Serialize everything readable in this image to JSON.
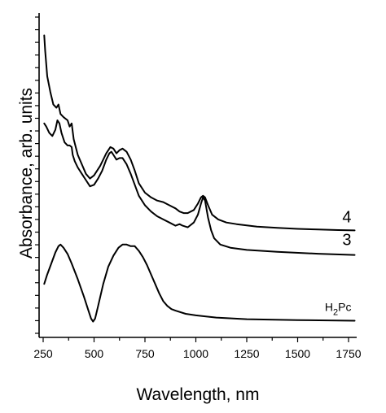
{
  "chart_data": {
    "type": "line",
    "xlabel": "Wavelength, nm",
    "ylabel": "Absorbance, arb. units",
    "xlim": [
      230,
      1790
    ],
    "ylim": [
      0,
      1
    ],
    "x_ticks": [
      250,
      500,
      750,
      1000,
      1250,
      1500,
      1750
    ],
    "x_tick_labels": [
      "250",
      "500",
      "750",
      "1000",
      "1250",
      "1500",
      "1750"
    ],
    "y_tick_labels_shown": false,
    "y_minor_ticks": 25,
    "series": [
      {
        "name": "4",
        "label_main": "4",
        "points": [
          [
            255,
            0.96
          ],
          [
            260,
            0.91
          ],
          [
            270,
            0.83
          ],
          [
            285,
            0.78
          ],
          [
            300,
            0.74
          ],
          [
            315,
            0.73
          ],
          [
            325,
            0.74
          ],
          [
            335,
            0.71
          ],
          [
            350,
            0.7
          ],
          [
            370,
            0.69
          ],
          [
            380,
            0.67
          ],
          [
            390,
            0.68
          ],
          [
            400,
            0.63
          ],
          [
            420,
            0.58
          ],
          [
            440,
            0.55
          ],
          [
            460,
            0.52
          ],
          [
            480,
            0.505
          ],
          [
            500,
            0.515
          ],
          [
            530,
            0.545
          ],
          [
            560,
            0.585
          ],
          [
            580,
            0.605
          ],
          [
            595,
            0.6
          ],
          [
            610,
            0.585
          ],
          [
            625,
            0.595
          ],
          [
            640,
            0.6
          ],
          [
            660,
            0.59
          ],
          [
            680,
            0.565
          ],
          [
            700,
            0.53
          ],
          [
            720,
            0.49
          ],
          [
            750,
            0.46
          ],
          [
            780,
            0.445
          ],
          [
            810,
            0.435
          ],
          [
            840,
            0.43
          ],
          [
            870,
            0.42
          ],
          [
            900,
            0.41
          ],
          [
            920,
            0.4
          ],
          [
            940,
            0.395
          ],
          [
            960,
            0.395
          ],
          [
            990,
            0.405
          ],
          [
            1010,
            0.425
          ],
          [
            1025,
            0.445
          ],
          [
            1035,
            0.45
          ],
          [
            1045,
            0.445
          ],
          [
            1060,
            0.42
          ],
          [
            1080,
            0.39
          ],
          [
            1110,
            0.375
          ],
          [
            1150,
            0.365
          ],
          [
            1200,
            0.36
          ],
          [
            1300,
            0.352
          ],
          [
            1400,
            0.348
          ],
          [
            1500,
            0.345
          ],
          [
            1600,
            0.343
          ],
          [
            1700,
            0.341
          ],
          [
            1780,
            0.34
          ]
        ]
      },
      {
        "name": "3",
        "label_main": "3",
        "points": [
          [
            255,
            0.68
          ],
          [
            265,
            0.67
          ],
          [
            280,
            0.65
          ],
          [
            295,
            0.64
          ],
          [
            310,
            0.66
          ],
          [
            320,
            0.69
          ],
          [
            330,
            0.68
          ],
          [
            340,
            0.65
          ],
          [
            355,
            0.62
          ],
          [
            370,
            0.61
          ],
          [
            380,
            0.61
          ],
          [
            390,
            0.605
          ],
          [
            395,
            0.58
          ],
          [
            405,
            0.56
          ],
          [
            420,
            0.54
          ],
          [
            440,
            0.52
          ],
          [
            460,
            0.5
          ],
          [
            480,
            0.48
          ],
          [
            500,
            0.485
          ],
          [
            520,
            0.505
          ],
          [
            540,
            0.53
          ],
          [
            560,
            0.565
          ],
          [
            575,
            0.585
          ],
          [
            585,
            0.59
          ],
          [
            595,
            0.58
          ],
          [
            610,
            0.565
          ],
          [
            625,
            0.57
          ],
          [
            640,
            0.57
          ],
          [
            660,
            0.55
          ],
          [
            680,
            0.52
          ],
          [
            700,
            0.485
          ],
          [
            720,
            0.45
          ],
          [
            750,
            0.42
          ],
          [
            780,
            0.4
          ],
          [
            810,
            0.385
          ],
          [
            840,
            0.375
          ],
          [
            870,
            0.365
          ],
          [
            900,
            0.355
          ],
          [
            920,
            0.36
          ],
          [
            935,
            0.355
          ],
          [
            960,
            0.35
          ],
          [
            990,
            0.365
          ],
          [
            1010,
            0.39
          ],
          [
            1025,
            0.425
          ],
          [
            1035,
            0.445
          ],
          [
            1045,
            0.435
          ],
          [
            1060,
            0.38
          ],
          [
            1075,
            0.34
          ],
          [
            1090,
            0.315
          ],
          [
            1120,
            0.295
          ],
          [
            1170,
            0.285
          ],
          [
            1250,
            0.278
          ],
          [
            1400,
            0.272
          ],
          [
            1600,
            0.266
          ],
          [
            1780,
            0.262
          ]
        ]
      },
      {
        "name": "H2Pc",
        "label_main": "H",
        "label_sub": "2",
        "label_tail": "Pc",
        "points": [
          [
            255,
            0.17
          ],
          [
            270,
            0.2
          ],
          [
            290,
            0.235
          ],
          [
            310,
            0.27
          ],
          [
            325,
            0.29
          ],
          [
            335,
            0.295
          ],
          [
            350,
            0.285
          ],
          [
            370,
            0.265
          ],
          [
            390,
            0.235
          ],
          [
            420,
            0.185
          ],
          [
            450,
            0.13
          ],
          [
            470,
            0.09
          ],
          [
            485,
            0.06
          ],
          [
            495,
            0.05
          ],
          [
            505,
            0.06
          ],
          [
            520,
            0.1
          ],
          [
            545,
            0.17
          ],
          [
            570,
            0.225
          ],
          [
            595,
            0.26
          ],
          [
            620,
            0.285
          ],
          [
            640,
            0.295
          ],
          [
            660,
            0.295
          ],
          [
            680,
            0.29
          ],
          [
            700,
            0.29
          ],
          [
            720,
            0.275
          ],
          [
            740,
            0.255
          ],
          [
            760,
            0.23
          ],
          [
            780,
            0.2
          ],
          [
            800,
            0.17
          ],
          [
            820,
            0.14
          ],
          [
            840,
            0.115
          ],
          [
            860,
            0.1
          ],
          [
            880,
            0.09
          ],
          [
            900,
            0.085
          ],
          [
            950,
            0.075
          ],
          [
            1000,
            0.07
          ],
          [
            1100,
            0.063
          ],
          [
            1250,
            0.058
          ],
          [
            1500,
            0.055
          ],
          [
            1780,
            0.053
          ]
        ]
      }
    ],
    "grid": false,
    "legend": "none"
  }
}
